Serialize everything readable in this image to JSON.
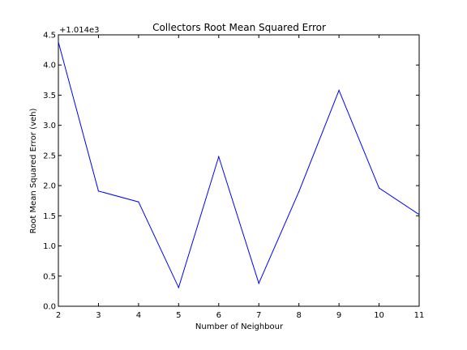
{
  "chart_data": {
    "type": "line",
    "title": "Collectors Root Mean Squared Error",
    "xlabel": "Number of Neighbour",
    "ylabel": "Root Mean Squared Error (veh)",
    "y_offset_label": "+1.014e3",
    "xlim": [
      2,
      11
    ],
    "ylim": [
      0,
      4.5
    ],
    "x_ticks": [
      "2",
      "3",
      "4",
      "5",
      "6",
      "7",
      "8",
      "9",
      "10",
      "11"
    ],
    "y_ticks": [
      "0.0",
      "0.5",
      "1.0",
      "1.5",
      "2.0",
      "2.5",
      "3.0",
      "3.5",
      "4.0",
      "4.5"
    ],
    "grid": false,
    "series": [
      {
        "color": "#0000ff",
        "x": [
          2,
          3,
          4,
          5,
          6,
          7,
          8,
          9,
          10,
          11
        ],
        "y": [
          4.38,
          1.91,
          1.73,
          0.31,
          2.48,
          0.38,
          1.9,
          3.58,
          1.96,
          1.52
        ]
      }
    ]
  }
}
